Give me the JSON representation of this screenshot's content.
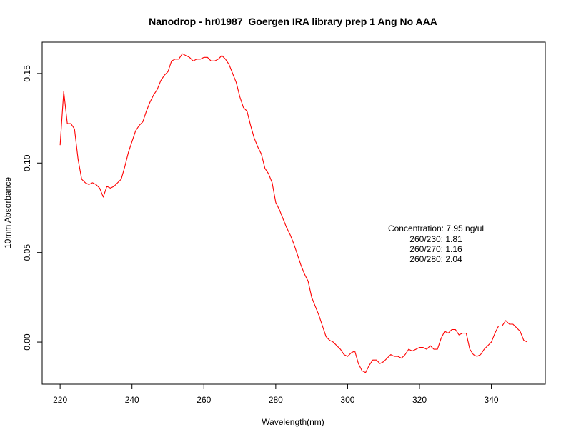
{
  "chart_data": {
    "type": "line",
    "title": "Nanodrop - hr01987_Goergen IRA library prep 1 Ang No AAA",
    "xlabel": "Wavelength(nm)",
    "ylabel": "10mm Absorbance",
    "xlim": [
      215,
      355
    ],
    "ylim": [
      -0.0235,
      0.1675
    ],
    "xticks": [
      220,
      240,
      260,
      280,
      300,
      320,
      340
    ],
    "yticks": [
      0.0,
      0.05,
      0.1,
      0.15
    ],
    "ytick_labels": [
      "0.00",
      "0.05",
      "0.10",
      "0.15"
    ],
    "grid": false,
    "line_color": "#ff0000",
    "series": [
      {
        "x": [
          220,
          221,
          222,
          223,
          224,
          225,
          226,
          227,
          228,
          229,
          230,
          231,
          232,
          233,
          234,
          235,
          236,
          237,
          238,
          239,
          240,
          241,
          242,
          243,
          244,
          245,
          246,
          247,
          248,
          249,
          250,
          251,
          252,
          253,
          254,
          255,
          256,
          257,
          258,
          259,
          260,
          261,
          262,
          263,
          264,
          265,
          266,
          267,
          268,
          269,
          270,
          271,
          272,
          273,
          274,
          275,
          276,
          277,
          278,
          279,
          280,
          281,
          282,
          283,
          284,
          285,
          286,
          287,
          288,
          289,
          290,
          291,
          292,
          293,
          294,
          295,
          296,
          297,
          298,
          299,
          300,
          301,
          302,
          303,
          304,
          305,
          306,
          307,
          308,
          309,
          310,
          311,
          312,
          313,
          314,
          315,
          316,
          317,
          318,
          319,
          320,
          321,
          322,
          323,
          324,
          325,
          326,
          327,
          328,
          329,
          330,
          331,
          332,
          333,
          334,
          335,
          336,
          337,
          338,
          339,
          340,
          341,
          342,
          343,
          344,
          345,
          346,
          347,
          348,
          349,
          350
        ],
        "y": [
          0.11,
          0.14,
          0.122,
          0.122,
          0.119,
          0.102,
          0.091,
          0.089,
          0.088,
          0.089,
          0.088,
          0.086,
          0.081,
          0.087,
          0.086,
          0.087,
          0.089,
          0.091,
          0.098,
          0.106,
          0.112,
          0.118,
          0.121,
          0.123,
          0.129,
          0.134,
          0.138,
          0.141,
          0.146,
          0.149,
          0.151,
          0.157,
          0.158,
          0.158,
          0.161,
          0.16,
          0.159,
          0.157,
          0.158,
          0.158,
          0.159,
          0.159,
          0.157,
          0.157,
          0.158,
          0.16,
          0.158,
          0.155,
          0.15,
          0.145,
          0.137,
          0.131,
          0.129,
          0.121,
          0.114,
          0.109,
          0.105,
          0.097,
          0.094,
          0.089,
          0.078,
          0.074,
          0.069,
          0.064,
          0.06,
          0.055,
          0.049,
          0.043,
          0.038,
          0.034,
          0.025,
          0.02,
          0.015,
          0.009,
          0.003,
          0.001,
          0.0,
          -0.002,
          -0.004,
          -0.007,
          -0.008,
          -0.006,
          -0.005,
          -0.012,
          -0.016,
          -0.017,
          -0.013,
          -0.01,
          -0.01,
          -0.012,
          -0.011,
          -0.009,
          -0.007,
          -0.008,
          -0.008,
          -0.009,
          -0.007,
          -0.004,
          -0.005,
          -0.004,
          -0.003,
          -0.003,
          -0.004,
          -0.002,
          -0.004,
          -0.004,
          0.002,
          0.006,
          0.005,
          0.007,
          0.007,
          0.004,
          0.005,
          0.005,
          -0.004,
          -0.007,
          -0.008,
          -0.007,
          -0.004,
          -0.002,
          0.0,
          0.005,
          0.009,
          0.009,
          0.012,
          0.01,
          0.01,
          0.008,
          0.006,
          0.001,
          0.0
        ]
      }
    ],
    "annotations": {
      "concentration": "Concentration: 7.95 ng/ul",
      "ratio_230": "260/230: 1.81",
      "ratio_270": "260/270: 1.16",
      "ratio_280": "260/280: 2.04"
    }
  }
}
